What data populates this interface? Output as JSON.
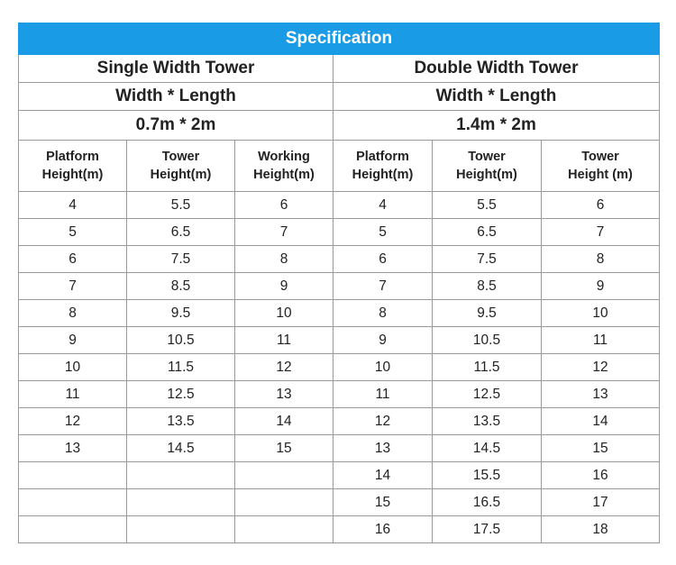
{
  "title": "Specification",
  "single": {
    "name": "Single Width Tower",
    "dims_label": "Width * Length",
    "dims_value": "0.7m * 2m",
    "headers": [
      [
        "Platform",
        "Height(m)"
      ],
      [
        "Tower",
        "Height(m)"
      ],
      [
        "Working",
        "Height(m)"
      ]
    ]
  },
  "double": {
    "name": "Double Width Tower",
    "dims_label": "Width * Length",
    "dims_value": "1.4m * 2m",
    "headers": [
      [
        "Platform",
        "Height(m)"
      ],
      [
        "Tower",
        "Height(m)"
      ],
      [
        "Tower",
        "Height (m)"
      ]
    ]
  },
  "rows": [
    [
      "4",
      "5.5",
      "6",
      "4",
      "5.5",
      "6"
    ],
    [
      "5",
      "6.5",
      "7",
      "5",
      "6.5",
      "7"
    ],
    [
      "6",
      "7.5",
      "8",
      "6",
      "7.5",
      "8"
    ],
    [
      "7",
      "8.5",
      "9",
      "7",
      "8.5",
      "9"
    ],
    [
      "8",
      "9.5",
      "10",
      "8",
      "9.5",
      "10"
    ],
    [
      "9",
      "10.5",
      "11",
      "9",
      "10.5",
      "11"
    ],
    [
      "10",
      "11.5",
      "12",
      "10",
      "11.5",
      "12"
    ],
    [
      "11",
      "12.5",
      "13",
      "11",
      "12.5",
      "13"
    ],
    [
      "12",
      "13.5",
      "14",
      "12",
      "13.5",
      "14"
    ],
    [
      "13",
      "14.5",
      "15",
      "13",
      "14.5",
      "15"
    ],
    [
      "",
      "",
      "",
      "14",
      "15.5",
      "16"
    ],
    [
      "",
      "",
      "",
      "15",
      "16.5",
      "17"
    ],
    [
      "",
      "",
      "",
      "16",
      "17.5",
      "18"
    ]
  ]
}
